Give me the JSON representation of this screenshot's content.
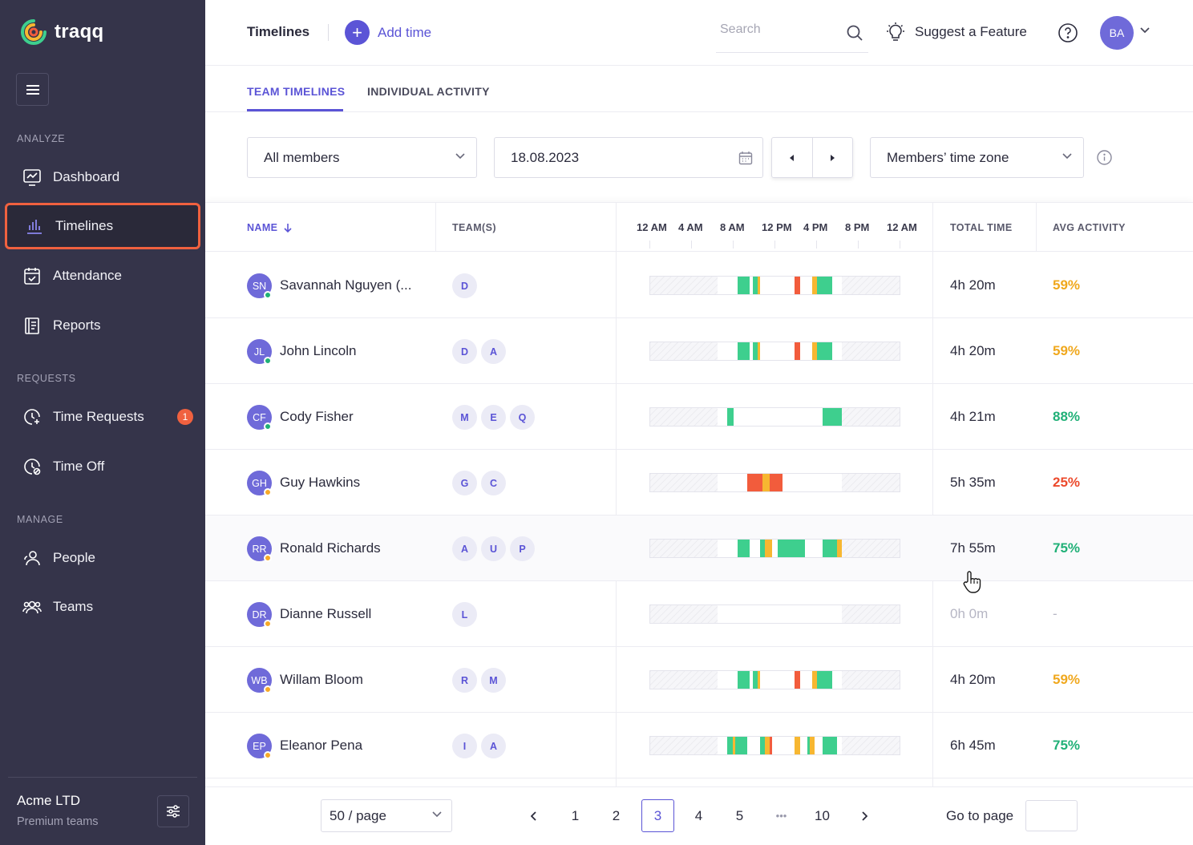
{
  "app": {
    "name": "traqq"
  },
  "sidebar": {
    "sections": [
      {
        "label": "ANALYZE"
      },
      {
        "label": "REQUESTS"
      },
      {
        "label": "MANAGE"
      }
    ],
    "items": [
      {
        "label": "Dashboard",
        "icon": "dashboard-icon"
      },
      {
        "label": "Timelines",
        "icon": "bar-chart-icon",
        "active": true
      },
      {
        "label": "Attendance",
        "icon": "calendar-check-icon"
      },
      {
        "label": "Reports",
        "icon": "report-icon"
      },
      {
        "label": "Time Requests",
        "icon": "clock-plus-icon",
        "badge": "1"
      },
      {
        "label": "Time Off",
        "icon": "clock-off-icon"
      },
      {
        "label": "People",
        "icon": "people-icon"
      },
      {
        "label": "Teams",
        "icon": "teams-icon"
      }
    ],
    "org": {
      "name": "Acme LTD",
      "plan": "Premium teams"
    }
  },
  "header": {
    "title": "Timelines",
    "add_time": "Add time",
    "search_placeholder": "Search",
    "suggest": "Suggest a Feature",
    "user_initials": "BA"
  },
  "tabs": [
    {
      "label": "TEAM TIMELINES",
      "active": true
    },
    {
      "label": "INDIVIDUAL ACTIVITY",
      "active": false
    }
  ],
  "filters": {
    "members": "All members",
    "date": "18.08.2023",
    "timezone": "Members’ time zone"
  },
  "table": {
    "headers": {
      "name": "NAME",
      "teams": "TEAM(S)",
      "total": "TOTAL TIME",
      "activity": "AVG ACTIVITY"
    },
    "hours": [
      "12 AM",
      "4 AM",
      "8 AM",
      "12 PM",
      "4 PM",
      "8 PM",
      "12 AM"
    ],
    "colors": {
      "green": "#3ecf8e",
      "yellow": "#f7b731",
      "red": "#f25c3c",
      "accent": "#5b54d6"
    },
    "rows": [
      {
        "initials": "SN",
        "name": "Savannah Nguyen (...",
        "status": "online",
        "teams": [
          "D"
        ],
        "total": "4h 20m",
        "activity": "59%",
        "level": "medium",
        "segments": [
          [
            35,
            40,
            "green"
          ],
          [
            41,
            43,
            "green"
          ],
          [
            43,
            44,
            "yellow"
          ],
          [
            58,
            60,
            "red"
          ],
          [
            65,
            67,
            "yellow"
          ],
          [
            67,
            73,
            "green"
          ]
        ]
      },
      {
        "initials": "JL",
        "name": "John Lincoln",
        "status": "online",
        "teams": [
          "D",
          "A"
        ],
        "total": "4h 20m",
        "activity": "59%",
        "level": "medium",
        "segments": [
          [
            35,
            40,
            "green"
          ],
          [
            41,
            43,
            "green"
          ],
          [
            43,
            44,
            "yellow"
          ],
          [
            58,
            60,
            "red"
          ],
          [
            65,
            67,
            "yellow"
          ],
          [
            67,
            73,
            "green"
          ]
        ]
      },
      {
        "initials": "CF",
        "name": "Cody Fisher",
        "status": "online",
        "teams": [
          "M",
          "E",
          "Q"
        ],
        "total": "4h 21m",
        "activity": "88%",
        "level": "high",
        "segments": [
          [
            31,
            33.5,
            "green"
          ],
          [
            69,
            77,
            "green"
          ]
        ]
      },
      {
        "initials": "GH",
        "name": "Guy Hawkins",
        "status": "away",
        "teams": [
          "G",
          "C"
        ],
        "total": "5h 35m",
        "activity": "25%",
        "level": "low",
        "segments": [
          [
            39,
            45,
            "red"
          ],
          [
            45,
            48,
            "yellow"
          ],
          [
            48,
            53,
            "red"
          ]
        ]
      },
      {
        "initials": "RR",
        "name": "Ronald Richards",
        "status": "away",
        "teams": [
          "A",
          "U",
          "P"
        ],
        "total": "7h 55m",
        "activity": "75%",
        "level": "high",
        "segments": [
          [
            35,
            40,
            "green"
          ],
          [
            44,
            46,
            "green"
          ],
          [
            46,
            49,
            "yellow"
          ],
          [
            51,
            62,
            "green"
          ],
          [
            69,
            75,
            "green"
          ],
          [
            75,
            77,
            "yellow"
          ]
        ]
      },
      {
        "initials": "DR",
        "name": "Dianne Russell",
        "status": "away",
        "teams": [
          "L"
        ],
        "total": "0h 0m",
        "activity": "-",
        "level": "none",
        "segments": []
      },
      {
        "initials": "WB",
        "name": "Willam Bloom",
        "status": "away",
        "teams": [
          "R",
          "M"
        ],
        "total": "4h 20m",
        "activity": "59%",
        "level": "medium",
        "segments": [
          [
            35,
            40,
            "green"
          ],
          [
            41,
            43,
            "green"
          ],
          [
            43,
            44,
            "yellow"
          ],
          [
            58,
            60,
            "red"
          ],
          [
            65,
            67,
            "yellow"
          ],
          [
            67,
            73,
            "green"
          ]
        ]
      },
      {
        "initials": "EP",
        "name": "Eleanor Pena",
        "status": "away",
        "teams": [
          "I",
          "A"
        ],
        "total": "6h 45m",
        "activity": "75%",
        "level": "high",
        "segments": [
          [
            31,
            33,
            "green"
          ],
          [
            33,
            34,
            "yellow"
          ],
          [
            34,
            39,
            "green"
          ],
          [
            44,
            46,
            "green"
          ],
          [
            46,
            48,
            "yellow"
          ],
          [
            48,
            49,
            "red"
          ],
          [
            58,
            60,
            "yellow"
          ],
          [
            63,
            64,
            "green"
          ],
          [
            64,
            66,
            "yellow"
          ],
          [
            69,
            75,
            "green"
          ]
        ]
      }
    ]
  },
  "pagination": {
    "page_size": "50 / page",
    "pages": [
      "1",
      "2",
      "3",
      "4",
      "5",
      "•••",
      "10"
    ],
    "current": "3",
    "goto_label": "Go to page"
  }
}
